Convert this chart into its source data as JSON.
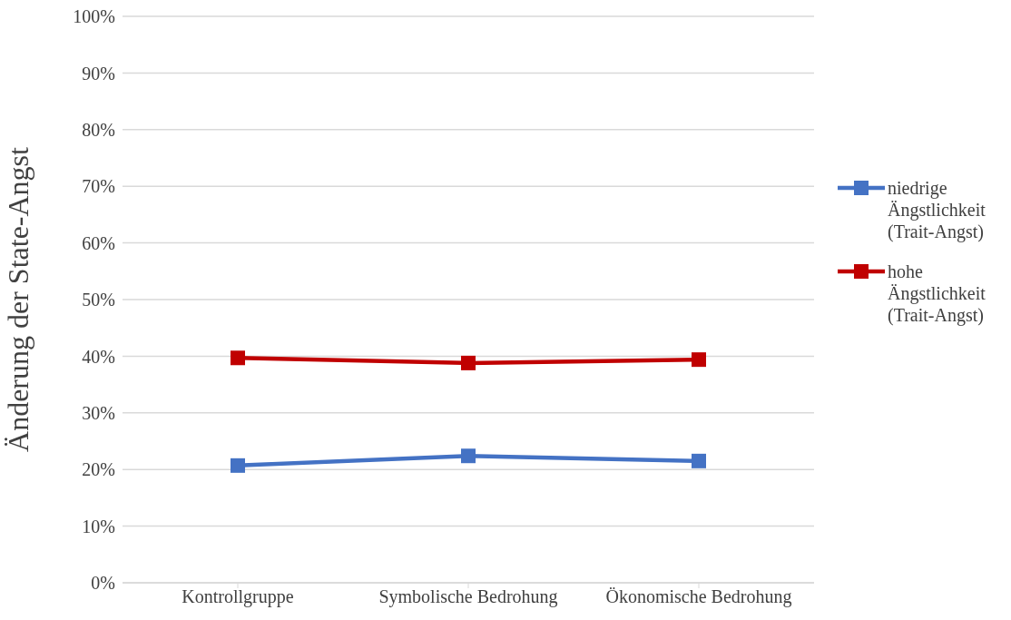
{
  "chart_data": {
    "type": "line",
    "ylabel": "Änderung der State-Angst",
    "categories": [
      "Kontrollgruppe",
      "Symbolische Bedrohung",
      "Ökonomische Bedrohung"
    ],
    "series": [
      {
        "name": "niedrige Ängstlichkeit (Trait-Angst)",
        "color": "#4472c4",
        "values": [
          20.7,
          22.4,
          21.5
        ]
      },
      {
        "name": "hohe Ängstlichkeit (Trait-Angst)",
        "color": "#c00000",
        "values": [
          39.7,
          38.8,
          39.4
        ]
      }
    ],
    "ylim": [
      0,
      100
    ],
    "yticks": [
      {
        "value": 0,
        "label": "0%"
      },
      {
        "value": 10,
        "label": "10%"
      },
      {
        "value": 20,
        "label": "20%"
      },
      {
        "value": 30,
        "label": "30%"
      },
      {
        "value": 40,
        "label": "40%"
      },
      {
        "value": 50,
        "label": "50%"
      },
      {
        "value": 60,
        "label": "60%"
      },
      {
        "value": 70,
        "label": "70%"
      },
      {
        "value": 80,
        "label": "80%"
      },
      {
        "value": 90,
        "label": "90%"
      },
      {
        "value": 100,
        "label": "100%"
      }
    ],
    "grid": "y",
    "legend": "right",
    "marker": "square",
    "line_style": "solid"
  }
}
